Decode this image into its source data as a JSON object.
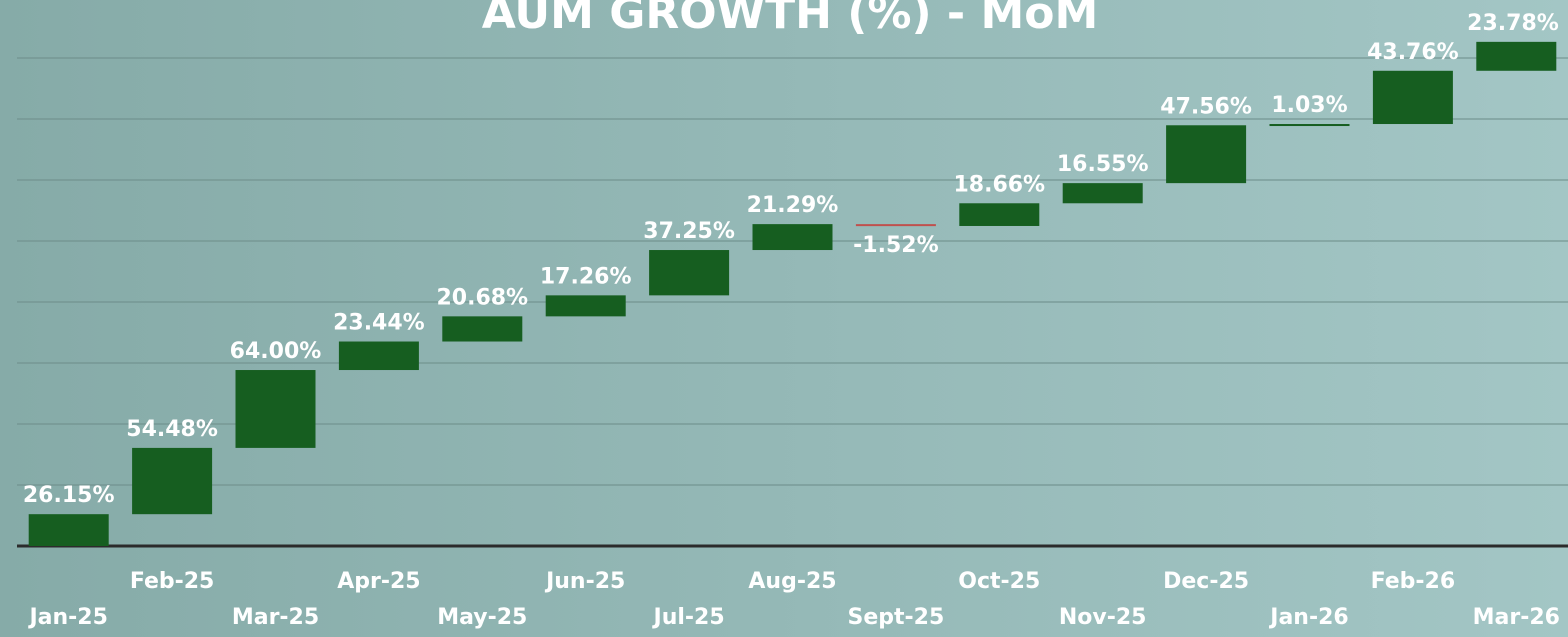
{
  "chart_data": {
    "type": "waterfall",
    "title": "AUM GROWTH (%) - MoM",
    "categories": [
      "Jan-25",
      "Feb-25",
      "Mar-25",
      "Apr-25",
      "May-25",
      "Jun-25",
      "Jul-25",
      "Aug-25",
      "Sept-25",
      "Oct-25",
      "Nov-25",
      "Dec-25",
      "Jan-26",
      "Feb-26",
      "Mar-26"
    ],
    "values": [
      26.15,
      54.48,
      64.0,
      23.44,
      20.68,
      17.26,
      37.25,
      21.29,
      -1.52,
      18.66,
      16.55,
      47.56,
      1.03,
      43.76,
      23.78
    ],
    "value_labels": [
      "26.15%",
      "54.48%",
      "64.00%",
      "23.44%",
      "20.68%",
      "17.26%",
      "37.25%",
      "21.29%",
      "-1.52%",
      "18.66%",
      "16.55%",
      "47.56%",
      "1.03%",
      "43.76%",
      "23.78%"
    ],
    "ylim": [
      0,
      420
    ],
    "colors": {
      "increase": "#165e20",
      "decrease": "#c0504d"
    }
  }
}
